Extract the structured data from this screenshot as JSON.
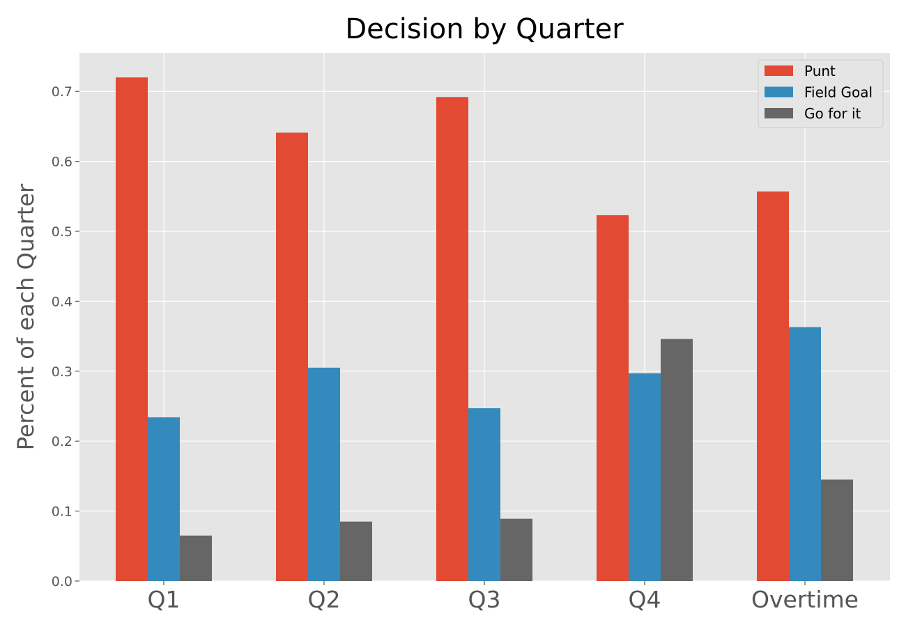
{
  "chart_data": {
    "type": "bar",
    "title": "Decision by Quarter",
    "xlabel": "",
    "ylabel": "Percent of each Quarter",
    "categories": [
      "Q1",
      "Q2",
      "Q3",
      "Q4",
      "Overtime"
    ],
    "series": [
      {
        "name": "Punt",
        "color": "#E24A33",
        "values": [
          0.72,
          0.641,
          0.692,
          0.523,
          0.557
        ]
      },
      {
        "name": "Field Goal",
        "color": "#348ABD",
        "values": [
          0.234,
          0.305,
          0.247,
          0.297,
          0.363
        ]
      },
      {
        "name": "Go for it",
        "color": "#666666",
        "values": [
          0.065,
          0.085,
          0.089,
          0.346,
          0.145
        ]
      }
    ],
    "ylim": [
      0,
      0.755
    ],
    "yticks": [
      "0.0",
      "0.1",
      "0.2",
      "0.3",
      "0.4",
      "0.5",
      "0.6",
      "0.7"
    ],
    "grid": true,
    "legend_position": "top-right",
    "background": "#E5E5E5"
  }
}
